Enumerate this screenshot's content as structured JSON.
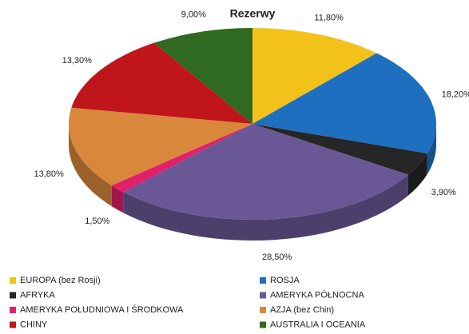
{
  "chart_data": {
    "type": "pie",
    "title": "Rezerwy",
    "categories": [
      "EUROPA (bez Rosji)",
      "ROSJA",
      "AFRYKA",
      "AMERYKA PÓŁNOCNA",
      "AMERYKA POŁUDNIOWA I ŚRODKOWA",
      "AZJA (bez Chin)",
      "CHINY",
      "AUSTRALIA I OCEANIA"
    ],
    "values": [
      11.8,
      18.2,
      3.9,
      28.5,
      1.5,
      13.8,
      13.3,
      9.0
    ],
    "value_labels": [
      "11,80%",
      "18,20%",
      "3,90%",
      "28,50%",
      "1,50%",
      "13,80%",
      "13,30%",
      "9,00%"
    ],
    "colors": [
      "#f2c21b",
      "#1f6fc0",
      "#262626",
      "#6a5896",
      "#e0206a",
      "#d9873a",
      "#c0161b",
      "#2f6a20"
    ]
  }
}
